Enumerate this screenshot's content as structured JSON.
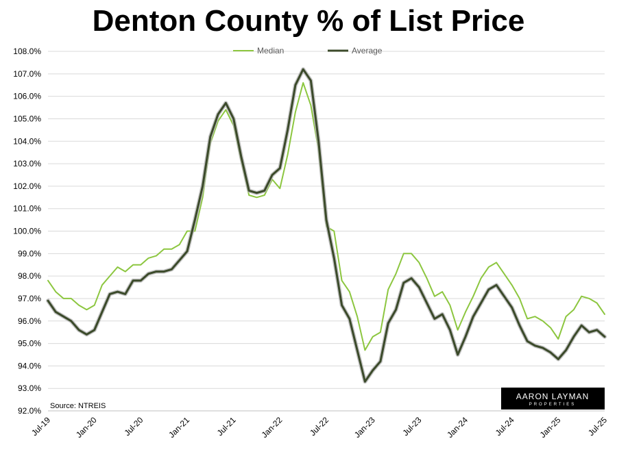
{
  "chart_data": {
    "type": "line",
    "title": "Denton County % of List Price",
    "source": "Source: NTREIS",
    "brand": {
      "main": "AARON LAYMAN",
      "sub": "PROPERTIES"
    },
    "ylim": [
      92.0,
      108.0
    ],
    "yticks": [
      92.0,
      93.0,
      94.0,
      95.0,
      96.0,
      97.0,
      98.0,
      99.0,
      100.0,
      101.0,
      102.0,
      103.0,
      104.0,
      105.0,
      106.0,
      107.0,
      108.0
    ],
    "ytick_labels": [
      "92.0%",
      "93.0%",
      "94.0%",
      "95.0%",
      "96.0%",
      "97.0%",
      "98.0%",
      "99.0%",
      "100.0%",
      "101.0%",
      "102.0%",
      "103.0%",
      "104.0%",
      "105.0%",
      "106.0%",
      "107.0%",
      "108.0%"
    ],
    "xtick_labels": [
      "Jul-19",
      "Jan-20",
      "Jul-20",
      "Jan-21",
      "Jul-21",
      "Jan-22",
      "Jul-22",
      "Jan-23",
      "Jul-23",
      "Jan-24",
      "Jul-24",
      "Jan-25",
      "Jul-25"
    ],
    "grid": true,
    "legend_placement": "top-center",
    "x": [
      "Jul-19",
      "Aug-19",
      "Sep-19",
      "Oct-19",
      "Nov-19",
      "Dec-19",
      "Jan-20",
      "Feb-20",
      "Mar-20",
      "Apr-20",
      "May-20",
      "Jun-20",
      "Jul-20",
      "Aug-20",
      "Sep-20",
      "Oct-20",
      "Nov-20",
      "Dec-20",
      "Jan-21",
      "Feb-21",
      "Mar-21",
      "Apr-21",
      "May-21",
      "Jun-21",
      "Jul-21",
      "Aug-21",
      "Sep-21",
      "Oct-21",
      "Nov-21",
      "Dec-21",
      "Jan-22",
      "Feb-22",
      "Mar-22",
      "Apr-22",
      "May-22",
      "Jun-22",
      "Jul-22",
      "Aug-22",
      "Sep-22",
      "Oct-22",
      "Nov-22",
      "Dec-22",
      "Jan-23",
      "Feb-23",
      "Mar-23",
      "Apr-23",
      "May-23",
      "Jun-23",
      "Jul-23",
      "Aug-23",
      "Sep-23",
      "Oct-23",
      "Nov-23",
      "Dec-23",
      "Jan-24",
      "Feb-24",
      "Mar-24",
      "Apr-24",
      "May-24",
      "Jun-24",
      "Jul-24",
      "Aug-24",
      "Sep-24",
      "Oct-24",
      "Nov-24",
      "Dec-24",
      "Jan-25",
      "Feb-25",
      "Mar-25",
      "Apr-25",
      "May-25",
      "Jun-25",
      "Jul-25"
    ],
    "series": [
      {
        "name": "Median",
        "color": "#8cc63f",
        "values": [
          97.8,
          97.3,
          97.0,
          97.0,
          96.7,
          96.5,
          96.7,
          97.6,
          98.0,
          98.4,
          98.2,
          98.5,
          98.5,
          98.8,
          98.9,
          99.2,
          99.2,
          99.4,
          100.0,
          100.0,
          101.5,
          103.9,
          104.9,
          105.4,
          104.7,
          103.1,
          101.6,
          101.5,
          101.6,
          102.3,
          101.9,
          103.4,
          105.3,
          106.6,
          105.6,
          103.6,
          100.2,
          100.0,
          97.8,
          97.3,
          96.2,
          94.7,
          95.3,
          95.5,
          97.4,
          98.1,
          99.0,
          99.0,
          98.6,
          97.9,
          97.1,
          97.3,
          96.7,
          95.6,
          96.4,
          97.1,
          97.9,
          98.4,
          98.6,
          98.1,
          97.6,
          97.0,
          96.1,
          96.2,
          96.0,
          95.7,
          95.2,
          96.2,
          96.5,
          97.1,
          97.0,
          96.8,
          96.3
        ]
      },
      {
        "name": "Average",
        "color": "#3b4a2a",
        "values": [
          96.9,
          96.4,
          96.2,
          96.0,
          95.6,
          95.4,
          95.6,
          96.4,
          97.2,
          97.3,
          97.2,
          97.8,
          97.8,
          98.1,
          98.2,
          98.2,
          98.3,
          98.7,
          99.1,
          100.5,
          102.0,
          104.2,
          105.2,
          105.7,
          105.0,
          103.3,
          101.8,
          101.7,
          101.8,
          102.5,
          102.8,
          104.5,
          106.5,
          107.2,
          106.7,
          104.0,
          100.5,
          98.8,
          96.7,
          96.1,
          94.7,
          93.3,
          93.8,
          94.2,
          95.9,
          96.5,
          97.7,
          97.9,
          97.5,
          96.8,
          96.1,
          96.3,
          95.6,
          94.5,
          95.3,
          96.2,
          96.8,
          97.4,
          97.6,
          97.1,
          96.6,
          95.8,
          95.1,
          94.9,
          94.8,
          94.6,
          94.3,
          94.7,
          95.3,
          95.8,
          95.5,
          95.6,
          95.3
        ]
      }
    ]
  }
}
